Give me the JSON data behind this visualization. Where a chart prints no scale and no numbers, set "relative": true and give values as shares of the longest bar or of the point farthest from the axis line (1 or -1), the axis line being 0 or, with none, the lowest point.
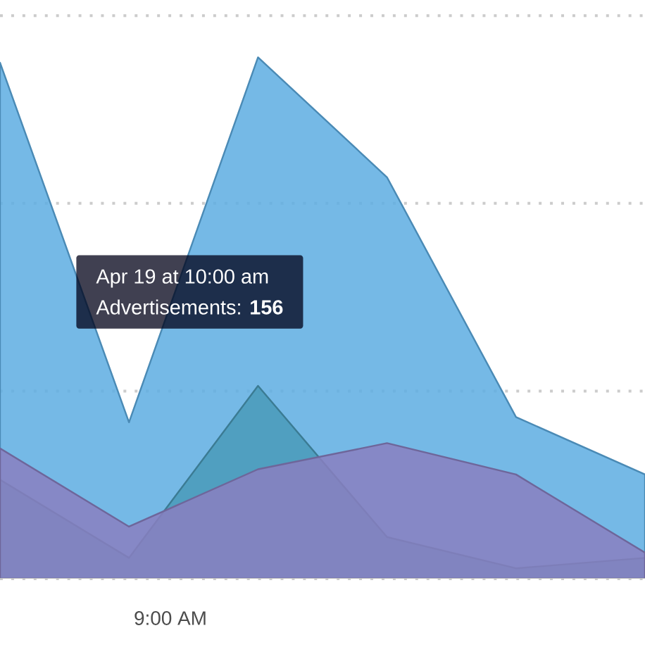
{
  "chart_data": {
    "type": "area",
    "relative": true,
    "categories": [
      null,
      null,
      null,
      null,
      null,
      null
    ],
    "series": [
      {
        "color": "#5dade2",
        "values": [
          0.99,
          0.3,
          1.0,
          0.77,
          0.31,
          0.2
        ]
      },
      {
        "color": "#4a9ab8",
        "values": [
          0.19,
          0.04,
          0.37,
          0.08,
          0.02,
          0.04
        ]
      },
      {
        "color": "#8a7fc0",
        "values": [
          0.25,
          0.1,
          0.21,
          0.26,
          0.2,
          0.05
        ]
      }
    ],
    "grid": "y",
    "annotations": [
      "9:00 AM",
      "Apr 19 at 10:00 am",
      "Advertisements: **156**"
    ]
  }
}
